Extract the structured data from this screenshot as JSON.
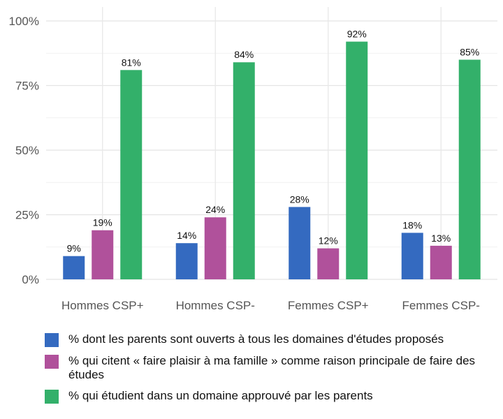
{
  "chart_data": {
    "type": "bar",
    "categories": [
      "Hommes CSP+",
      "Hommes CSP-",
      "Femmes CSP+",
      "Femmes CSP-"
    ],
    "series": [
      {
        "name": "% dont les parents sont ouverts à tous les domaines d'études proposés",
        "color": "#346ac0",
        "values": [
          9,
          14,
          28,
          18
        ]
      },
      {
        "name": "% qui citent « faire plaisir à ma famille » comme raison principale de faire des études",
        "color": "#b0519b",
        "values": [
          19,
          24,
          12,
          13
        ]
      },
      {
        "name": "% qui étudient dans un domaine approuvé par les parents",
        "color": "#33b06a",
        "values": [
          81,
          84,
          92,
          85
        ]
      }
    ],
    "ylim": [
      0,
      100
    ],
    "yticks": [
      0,
      25,
      50,
      75,
      100
    ],
    "ytick_labels": [
      "0%",
      "25%",
      "50%",
      "75%",
      "100%"
    ],
    "value_suffix": "%",
    "grid": true,
    "legend_position": "bottom"
  }
}
